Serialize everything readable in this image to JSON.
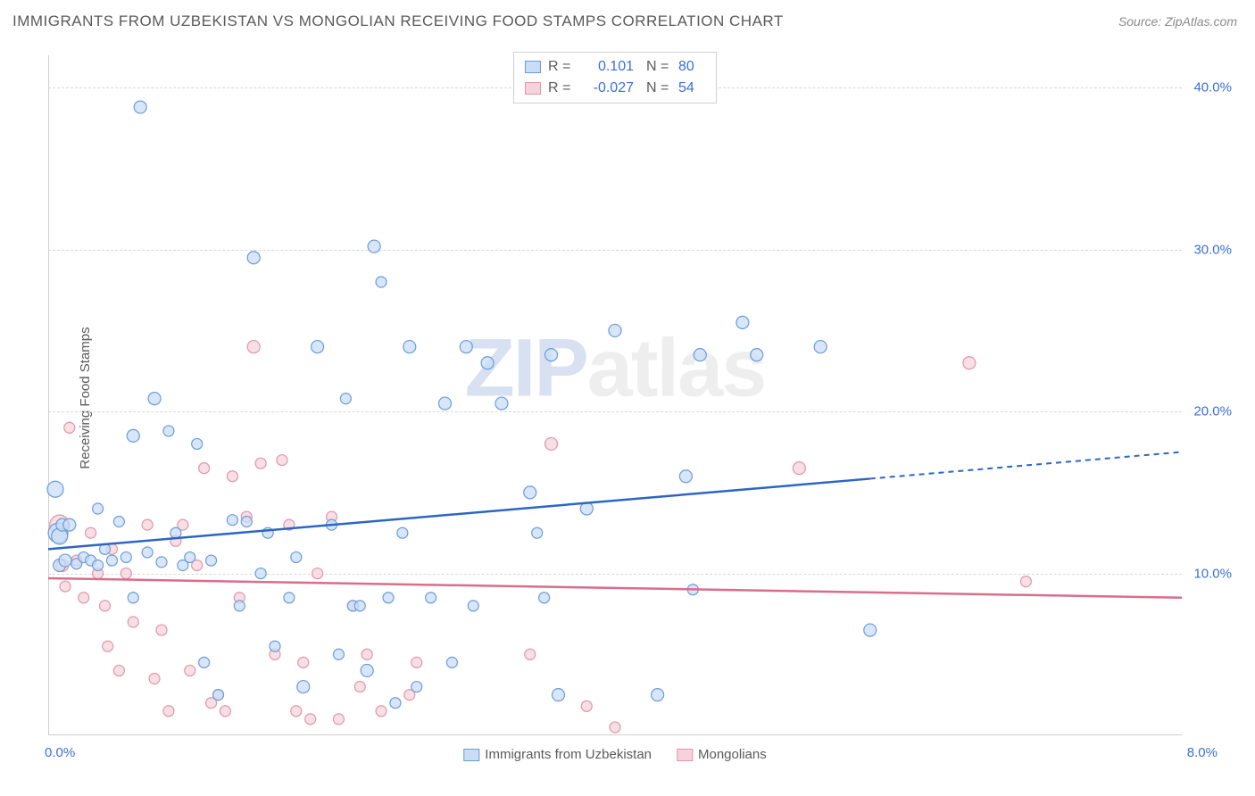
{
  "header": {
    "title": "IMMIGRANTS FROM UZBEKISTAN VS MONGOLIAN RECEIVING FOOD STAMPS CORRELATION CHART",
    "source_label": "Source:",
    "source_name": "ZipAtlas.com"
  },
  "chart": {
    "type": "scatter-with-trend",
    "ylabel": "Receiving Food Stamps",
    "xlim": [
      0,
      8
    ],
    "ylim": [
      0,
      42
    ],
    "xtick_labels": [
      "0.0%",
      "8.0%"
    ],
    "ytick_values": [
      10,
      20,
      30,
      40
    ],
    "ytick_labels": [
      "10.0%",
      "20.0%",
      "30.0%",
      "40.0%"
    ],
    "background_color": "#ffffff",
    "grid_color": "#d8d8d8",
    "axis_color": "#cfcfcf",
    "label_color": "#5a5a5a",
    "tick_color": "#3b6fd6",
    "watermark_zip": "ZIP",
    "watermark_atlas": "atlas",
    "series": [
      {
        "name": "Immigrants from Uzbekistan",
        "fill": "#c9ddf5",
        "stroke": "#6a9bdc",
        "line_color": "#2b66c4",
        "R": "0.101",
        "N": "80",
        "trend_start_y": 11.5,
        "trend_end_y": 17.5,
        "trend_solid_end_x": 5.8,
        "points": [
          [
            0.05,
            15.2,
            9
          ],
          [
            0.07,
            12.5,
            11
          ],
          [
            0.08,
            12.3,
            9
          ],
          [
            0.08,
            10.5,
            7
          ],
          [
            0.1,
            13.0,
            7
          ],
          [
            0.12,
            10.8,
            7
          ],
          [
            0.15,
            13.0,
            7
          ],
          [
            0.2,
            10.6,
            6
          ],
          [
            0.25,
            11.0,
            6
          ],
          [
            0.3,
            10.8,
            6
          ],
          [
            0.35,
            10.5,
            6
          ],
          [
            0.35,
            14.0,
            6
          ],
          [
            0.4,
            11.5,
            6
          ],
          [
            0.45,
            10.8,
            6
          ],
          [
            0.5,
            13.2,
            6
          ],
          [
            0.55,
            11.0,
            6
          ],
          [
            0.6,
            8.5,
            6
          ],
          [
            0.6,
            18.5,
            7
          ],
          [
            0.65,
            38.8,
            7
          ],
          [
            0.7,
            11.3,
            6
          ],
          [
            0.75,
            20.8,
            7
          ],
          [
            0.8,
            10.7,
            6
          ],
          [
            0.85,
            18.8,
            6
          ],
          [
            0.9,
            12.5,
            6
          ],
          [
            0.95,
            10.5,
            6
          ],
          [
            1.0,
            11.0,
            6
          ],
          [
            1.05,
            18.0,
            6
          ],
          [
            1.1,
            4.5,
            6
          ],
          [
            1.15,
            10.8,
            6
          ],
          [
            1.2,
            2.5,
            6
          ],
          [
            1.3,
            13.3,
            6
          ],
          [
            1.35,
            8.0,
            6
          ],
          [
            1.4,
            13.2,
            6
          ],
          [
            1.45,
            29.5,
            7
          ],
          [
            1.5,
            10.0,
            6
          ],
          [
            1.55,
            12.5,
            6
          ],
          [
            1.6,
            5.5,
            6
          ],
          [
            1.7,
            8.5,
            6
          ],
          [
            1.75,
            11.0,
            6
          ],
          [
            1.8,
            3.0,
            7
          ],
          [
            1.9,
            24.0,
            7
          ],
          [
            2.0,
            13.0,
            6
          ],
          [
            2.05,
            5.0,
            6
          ],
          [
            2.1,
            20.8,
            6
          ],
          [
            2.15,
            8.0,
            6
          ],
          [
            2.2,
            8.0,
            6
          ],
          [
            2.25,
            4.0,
            7
          ],
          [
            2.3,
            30.2,
            7
          ],
          [
            2.35,
            28.0,
            6
          ],
          [
            2.4,
            8.5,
            6
          ],
          [
            2.45,
            2.0,
            6
          ],
          [
            2.5,
            12.5,
            6
          ],
          [
            2.55,
            24.0,
            7
          ],
          [
            2.6,
            3.0,
            6
          ],
          [
            2.7,
            8.5,
            6
          ],
          [
            2.8,
            20.5,
            7
          ],
          [
            2.85,
            4.5,
            6
          ],
          [
            2.95,
            24.0,
            7
          ],
          [
            3.0,
            8.0,
            6
          ],
          [
            3.1,
            23.0,
            7
          ],
          [
            3.2,
            20.5,
            7
          ],
          [
            3.4,
            15.0,
            7
          ],
          [
            3.45,
            12.5,
            6
          ],
          [
            3.5,
            8.5,
            6
          ],
          [
            3.55,
            23.5,
            7
          ],
          [
            3.6,
            2.5,
            7
          ],
          [
            3.8,
            14.0,
            7
          ],
          [
            4.0,
            25.0,
            7
          ],
          [
            4.3,
            2.5,
            7
          ],
          [
            4.5,
            16.0,
            7
          ],
          [
            4.55,
            9.0,
            6
          ],
          [
            4.6,
            23.5,
            7
          ],
          [
            4.9,
            25.5,
            7
          ],
          [
            5.0,
            23.5,
            7
          ],
          [
            5.45,
            24.0,
            7
          ],
          [
            5.8,
            6.5,
            7
          ]
        ]
      },
      {
        "name": "Mongolians",
        "fill": "#f6d3dc",
        "stroke": "#e295aa",
        "line_color": "#d96d8c",
        "R": "-0.027",
        "N": "54",
        "trend_start_y": 9.7,
        "trend_end_y": 8.5,
        "trend_solid_end_x": 8.0,
        "points": [
          [
            0.08,
            13.0,
            11
          ],
          [
            0.1,
            10.5,
            7
          ],
          [
            0.12,
            9.2,
            6
          ],
          [
            0.15,
            19.0,
            6
          ],
          [
            0.2,
            10.8,
            6
          ],
          [
            0.25,
            8.5,
            6
          ],
          [
            0.3,
            12.5,
            6
          ],
          [
            0.35,
            10.0,
            6
          ],
          [
            0.4,
            8.0,
            6
          ],
          [
            0.42,
            5.5,
            6
          ],
          [
            0.45,
            11.5,
            6
          ],
          [
            0.5,
            4.0,
            6
          ],
          [
            0.55,
            10.0,
            6
          ],
          [
            0.6,
            7.0,
            6
          ],
          [
            0.7,
            13.0,
            6
          ],
          [
            0.75,
            3.5,
            6
          ],
          [
            0.8,
            6.5,
            6
          ],
          [
            0.85,
            1.5,
            6
          ],
          [
            0.9,
            12.0,
            6
          ],
          [
            0.95,
            13.0,
            6
          ],
          [
            1.0,
            4.0,
            6
          ],
          [
            1.05,
            10.5,
            6
          ],
          [
            1.1,
            16.5,
            6
          ],
          [
            1.15,
            2.0,
            6
          ],
          [
            1.2,
            2.5,
            6
          ],
          [
            1.25,
            1.5,
            6
          ],
          [
            1.3,
            16.0,
            6
          ],
          [
            1.35,
            8.5,
            6
          ],
          [
            1.4,
            13.5,
            6
          ],
          [
            1.45,
            24.0,
            7
          ],
          [
            1.5,
            16.8,
            6
          ],
          [
            1.6,
            5.0,
            6
          ],
          [
            1.65,
            17.0,
            6
          ],
          [
            1.7,
            13.0,
            6
          ],
          [
            1.75,
            1.5,
            6
          ],
          [
            1.8,
            4.5,
            6
          ],
          [
            1.85,
            1.0,
            6
          ],
          [
            1.9,
            10.0,
            6
          ],
          [
            2.0,
            13.5,
            6
          ],
          [
            2.05,
            1.0,
            6
          ],
          [
            2.15,
            8.0,
            6
          ],
          [
            2.2,
            3.0,
            6
          ],
          [
            2.25,
            5.0,
            6
          ],
          [
            2.35,
            1.5,
            6
          ],
          [
            2.55,
            2.5,
            6
          ],
          [
            2.6,
            4.5,
            6
          ],
          [
            3.4,
            5.0,
            6
          ],
          [
            3.55,
            18.0,
            7
          ],
          [
            3.8,
            1.8,
            6
          ],
          [
            4.0,
            0.5,
            6
          ],
          [
            5.3,
            16.5,
            7
          ],
          [
            6.5,
            23.0,
            7
          ],
          [
            6.9,
            9.5,
            6
          ]
        ]
      }
    ],
    "legend_bottom": [
      {
        "label": "Immigrants from Uzbekistan",
        "key": 0
      },
      {
        "label": "Mongolians",
        "key": 1
      }
    ]
  }
}
